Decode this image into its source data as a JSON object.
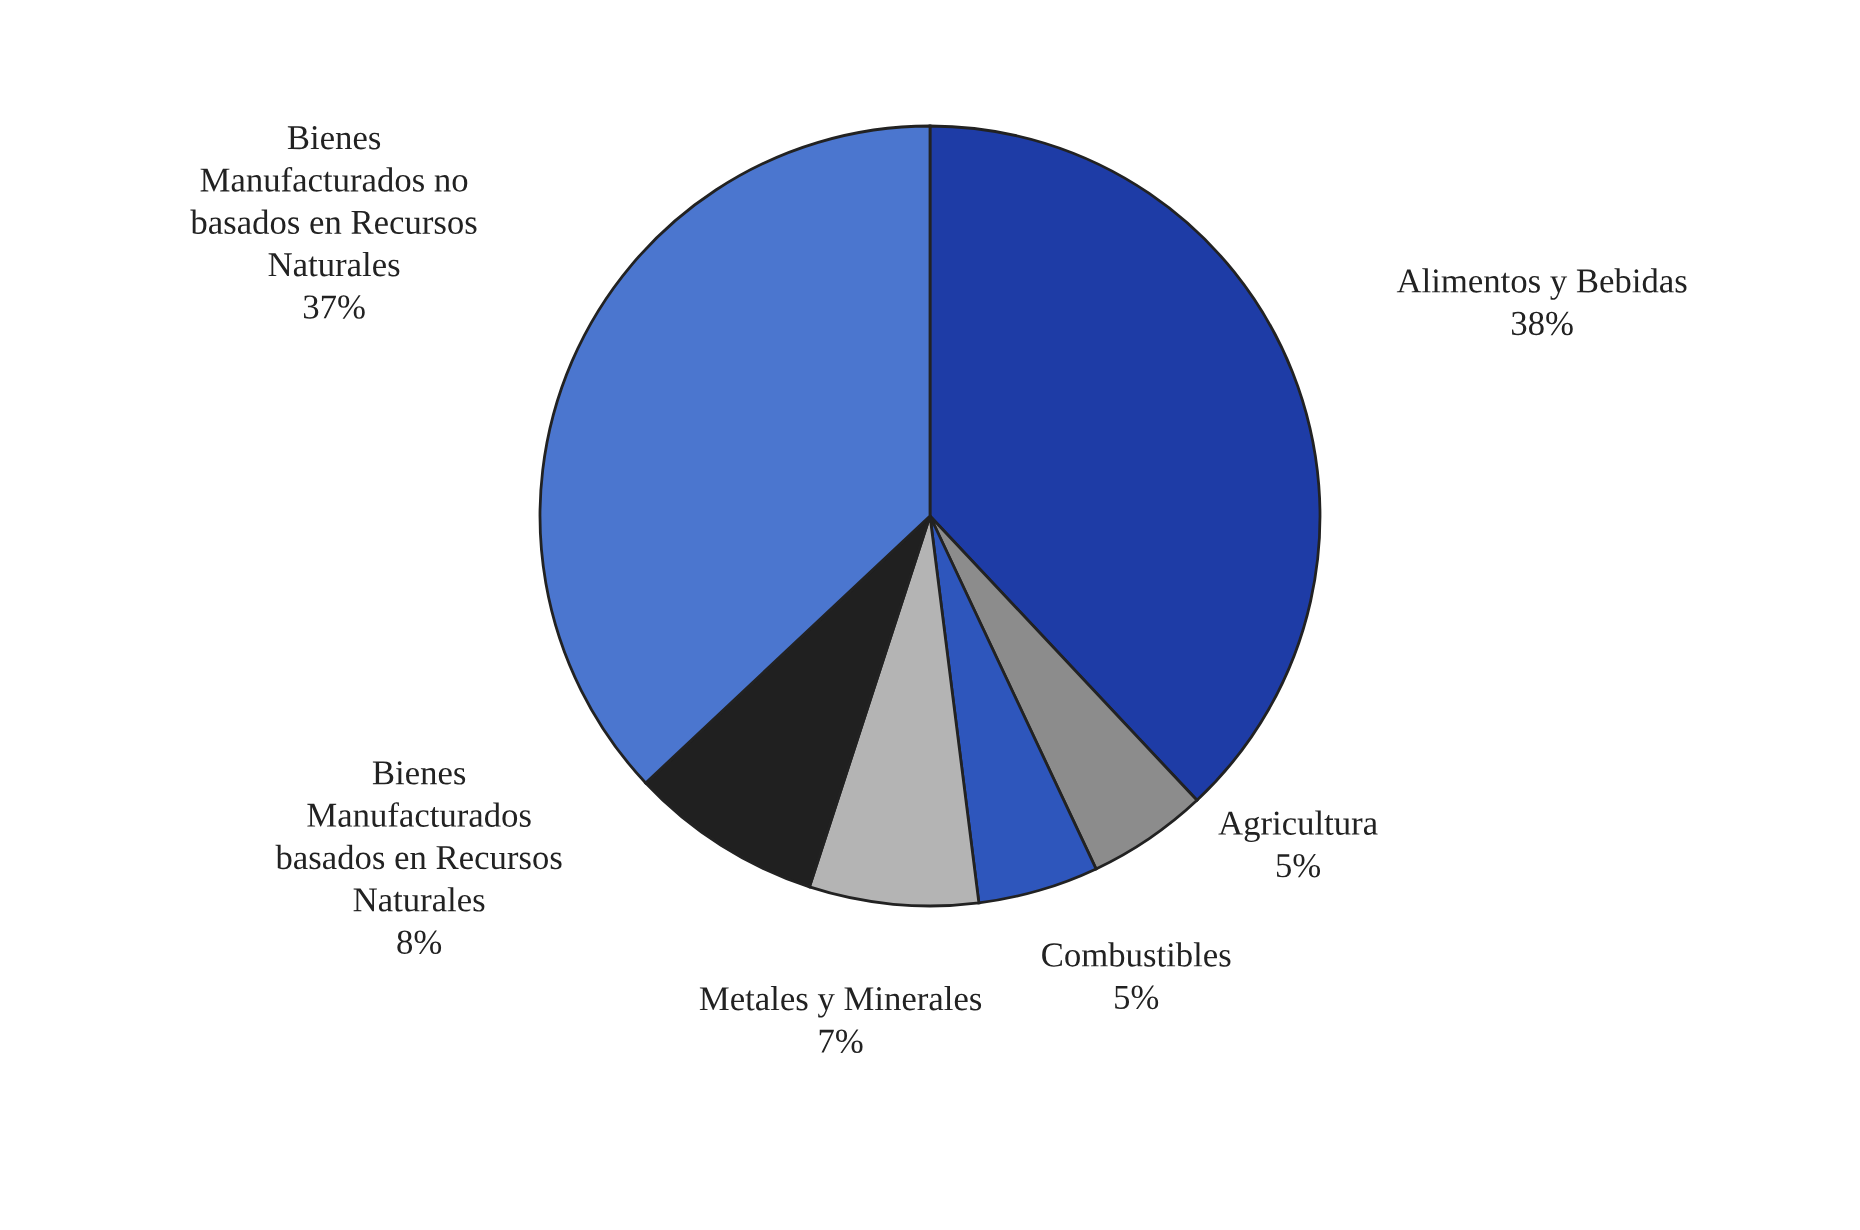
{
  "chart_data": {
    "type": "pie",
    "categories": [
      "Alimentos y Bebidas",
      "Agricultura",
      "Combustibles",
      "Metales y Minerales",
      "Bienes\nManufacturados\nbasados en Recursos\nNaturales",
      "Bienes\nManufacturados no\nbasados en Recursos\nNaturales"
    ],
    "values": [
      38,
      5,
      5,
      7,
      8,
      37
    ],
    "colors": [
      "#1e3ca6",
      "#8c8c8c",
      "#2e56bc",
      "#b4b4b4",
      "#202020",
      "#4b76cf"
    ],
    "value_labels": [
      "38%",
      "5%",
      "5%",
      "7%",
      "8%",
      "37%"
    ],
    "legend": false
  }
}
